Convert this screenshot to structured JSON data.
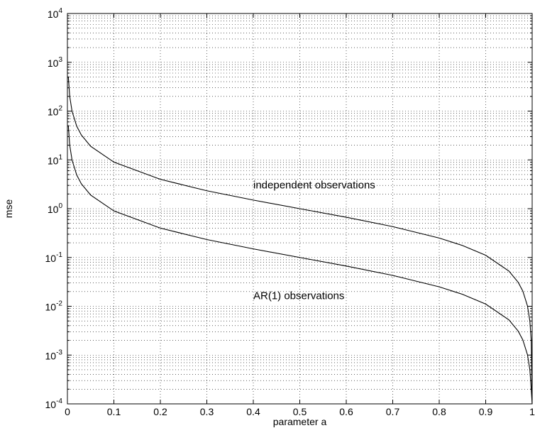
{
  "chart_data": {
    "type": "line",
    "xlabel": "parameter a",
    "ylabel": "mse",
    "xlim": [
      0,
      1
    ],
    "ylim": [
      0.0001,
      10000
    ],
    "yscale": "log",
    "grid": true,
    "x_ticks": [
      "0",
      "0.1",
      "0.2",
      "0.3",
      "0.4",
      "0.5",
      "0.6",
      "0.7",
      "0.8",
      "0.9",
      "1"
    ],
    "y_ticks": [
      {
        "base": "10",
        "exp": "-4"
      },
      {
        "base": "10",
        "exp": "-3"
      },
      {
        "base": "10",
        "exp": "-2"
      },
      {
        "base": "10",
        "exp": "-1"
      },
      {
        "base": "10",
        "exp": "0"
      },
      {
        "base": "10",
        "exp": "1"
      },
      {
        "base": "10",
        "exp": "2"
      },
      {
        "base": "10",
        "exp": "3"
      },
      {
        "base": "10",
        "exp": "4"
      }
    ],
    "line_color": "#000000",
    "grid_color": "#000000",
    "annotations": [
      {
        "text": "independent observations",
        "x": 0.4,
        "y": 2.6
      },
      {
        "text": "AR(1) observations",
        "x": 0.4,
        "y": 0.014
      }
    ],
    "series": [
      {
        "x": [
          0.002,
          0.005,
          0.01,
          0.02,
          0.03,
          0.05,
          0.1,
          0.2,
          0.3,
          0.4,
          0.5,
          0.6,
          0.7,
          0.8,
          0.85,
          0.9,
          0.95,
          0.97,
          0.98,
          0.99,
          0.995,
          0.998
        ],
        "values": [
          500,
          199,
          99,
          49,
          32.3,
          19,
          9,
          4,
          2.33,
          1.5,
          1.0,
          0.667,
          0.429,
          0.25,
          0.176,
          0.111,
          0.0526,
          0.0309,
          0.0204,
          0.0101,
          0.00503,
          0.002
        ]
      },
      {
        "x": [
          0.002,
          0.005,
          0.01,
          0.02,
          0.03,
          0.05,
          0.1,
          0.2,
          0.3,
          0.4,
          0.5,
          0.6,
          0.7,
          0.8,
          0.85,
          0.9,
          0.95,
          0.97,
          0.98,
          0.99,
          0.995,
          0.998
        ],
        "values": [
          50,
          19.9,
          9.9,
          4.9,
          3.23,
          1.9,
          0.9,
          0.4,
          0.233,
          0.15,
          0.1,
          0.0667,
          0.0429,
          0.025,
          0.0176,
          0.0111,
          0.00526,
          0.00309,
          0.00204,
          0.00101,
          0.000503,
          0.0002
        ]
      }
    ]
  }
}
